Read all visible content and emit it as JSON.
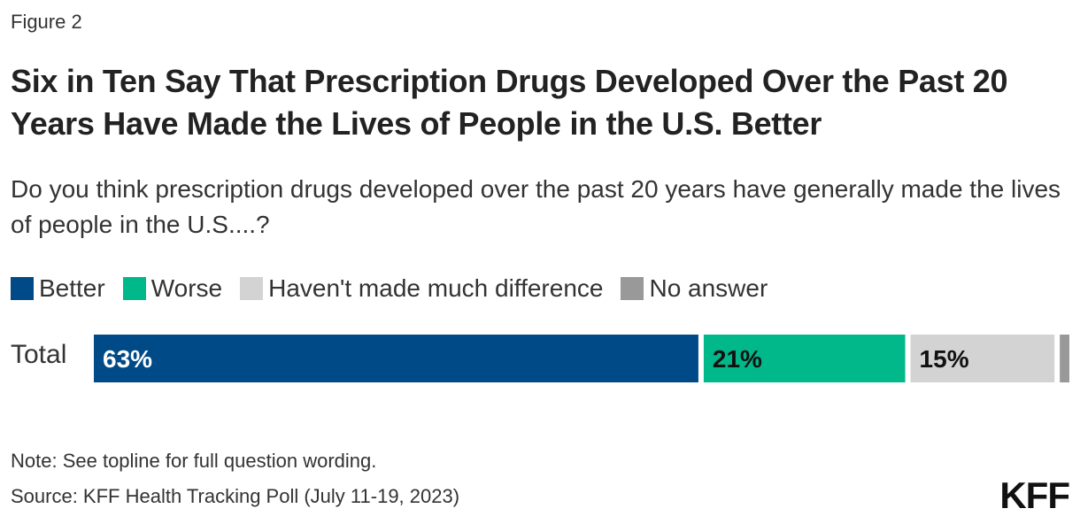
{
  "figure_label": "Figure 2",
  "title": "Six in Ten Say That Prescription Drugs Developed Over the Past 20 Years Have Made the Lives of People in the U.S. Better",
  "subtitle": "Do you think prescription drugs developed over the past 20 years have generally made the lives of people in the U.S....?",
  "note": "Note: See topline for full question wording.",
  "source": "Source: KFF Health Tracking Poll (July 11-19, 2023)",
  "logo": "KFF",
  "chart_data": {
    "type": "bar",
    "orientation": "horizontal-stacked",
    "categories": [
      "Total"
    ],
    "series": [
      {
        "name": "Better",
        "values": [
          63
        ],
        "label": "63%",
        "color": "#004A87"
      },
      {
        "name": "Worse",
        "values": [
          21
        ],
        "label": "21%",
        "color": "#00B88A"
      },
      {
        "name": "Haven't made much difference",
        "values": [
          15
        ],
        "label": "15%",
        "color": "#D3D3D3"
      },
      {
        "name": "No answer",
        "values": [
          1
        ],
        "label": "",
        "color": "#999999"
      }
    ],
    "xlim": [
      0,
      100
    ],
    "legend_position": "top-left",
    "grid": false
  }
}
